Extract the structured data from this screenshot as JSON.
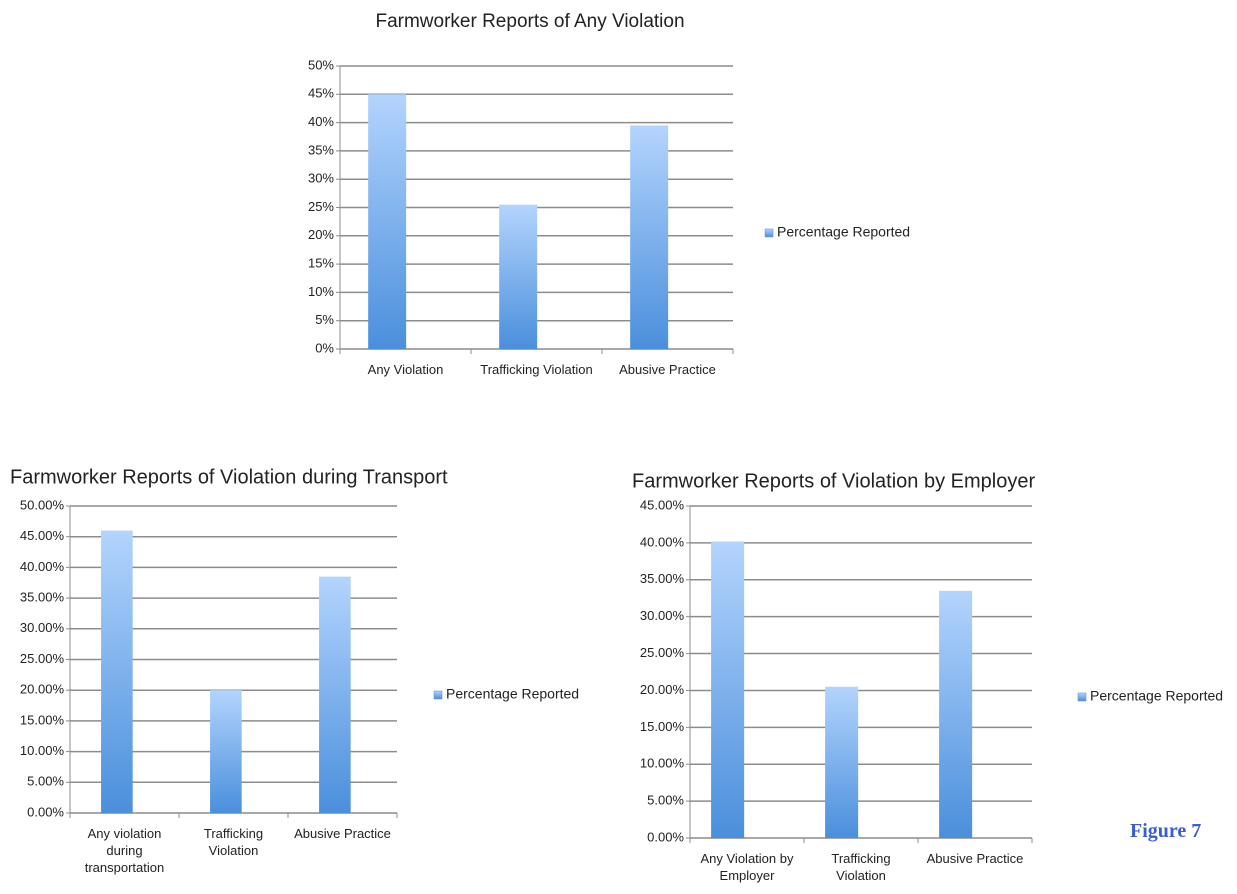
{
  "caption": "Figure 7",
  "chart_data": [
    {
      "type": "bar",
      "title": "Farmworker Reports of Any Violation",
      "categories": [
        "Any Violation",
        "Trafficking Violation",
        "Abusive Practice"
      ],
      "series": [
        {
          "name": "Percentage Reported",
          "color": "#4a8fdc",
          "values": [
            45,
            25.5,
            39.5
          ]
        }
      ],
      "ylim": [
        0,
        50
      ],
      "yticks": [
        {
          "value": 0,
          "label": "0%"
        },
        {
          "value": 5,
          "label": "5%"
        },
        {
          "value": 10,
          "label": "10%"
        },
        {
          "value": 15,
          "label": "15%"
        },
        {
          "value": 20,
          "label": "20%"
        },
        {
          "value": 25,
          "label": "25%"
        },
        {
          "value": 30,
          "label": "30%"
        },
        {
          "value": 35,
          "label": "35%"
        },
        {
          "value": 40,
          "label": "40%"
        },
        {
          "value": 45,
          "label": "45%"
        },
        {
          "value": 50,
          "label": "50%"
        }
      ],
      "grid": true,
      "legend": "right"
    },
    {
      "type": "bar",
      "title": "Farmworker Reports of Violation during Transport",
      "categories": [
        "Any violation during transportation",
        "Trafficking Violation",
        "Abusive Practice"
      ],
      "series": [
        {
          "name": "Percentage Reported",
          "color": "#4a8fdc",
          "values": [
            46,
            20,
            38.5
          ]
        }
      ],
      "ylim": [
        0,
        50
      ],
      "yticks": [
        {
          "value": 0,
          "label": "0.00%"
        },
        {
          "value": 5,
          "label": "5.00%"
        },
        {
          "value": 10,
          "label": "10.00%"
        },
        {
          "value": 15,
          "label": "15.00%"
        },
        {
          "value": 20,
          "label": "20.00%"
        },
        {
          "value": 25,
          "label": "25.00%"
        },
        {
          "value": 30,
          "label": "30.00%"
        },
        {
          "value": 35,
          "label": "35.00%"
        },
        {
          "value": 40,
          "label": "40.00%"
        },
        {
          "value": 45,
          "label": "45.00%"
        },
        {
          "value": 50,
          "label": "50.00%"
        }
      ],
      "grid": true,
      "legend": "right"
    },
    {
      "type": "bar",
      "title": "Farmworker Reports of Violation by Employer",
      "categories": [
        "Any Violation by Employer",
        "Trafficking Violation",
        "Abusive Practice"
      ],
      "series": [
        {
          "name": "Percentage Reported",
          "color": "#4a8fdc",
          "values": [
            40.2,
            20.5,
            33.5
          ]
        }
      ],
      "ylim": [
        0,
        45
      ],
      "yticks": [
        {
          "value": 0,
          "label": "0.00%"
        },
        {
          "value": 5,
          "label": "5.00%"
        },
        {
          "value": 10,
          "label": "10.00%"
        },
        {
          "value": 15,
          "label": "15.00%"
        },
        {
          "value": 20,
          "label": "20.00%"
        },
        {
          "value": 25,
          "label": "25.00%"
        },
        {
          "value": 30,
          "label": "30.00%"
        },
        {
          "value": 35,
          "label": "35.00%"
        },
        {
          "value": 40,
          "label": "40.00%"
        },
        {
          "value": 45,
          "label": "45.00%"
        }
      ],
      "grid": true,
      "legend": "right"
    }
  ]
}
